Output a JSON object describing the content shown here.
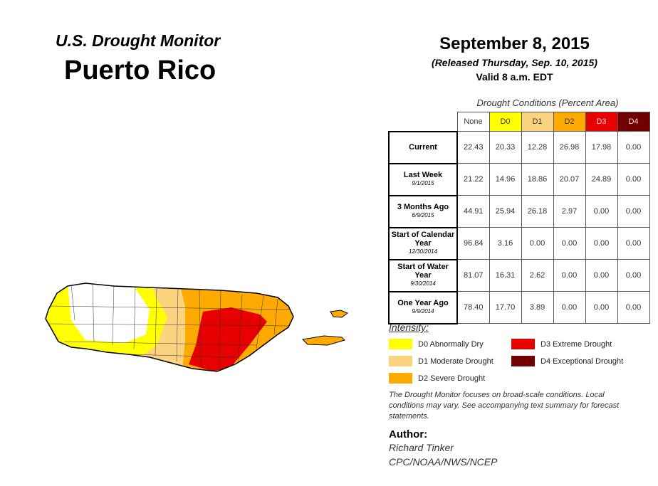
{
  "header": {
    "product": "U.S. Drought Monitor",
    "region": "Puerto Rico",
    "date": "September 8, 2015",
    "released": "(Released Thursday, Sep. 10, 2015)",
    "valid": "Valid 8 a.m. EDT"
  },
  "table": {
    "title": "Drought Conditions (Percent Area)",
    "columns": [
      {
        "label": "None",
        "color": "#ffffff"
      },
      {
        "label": "D0",
        "color": "#ffff00"
      },
      {
        "label": "D1",
        "color": "#fcd37f"
      },
      {
        "label": "D2",
        "color": "#ffaa00"
      },
      {
        "label": "D3",
        "color": "#e60000"
      },
      {
        "label": "D4",
        "color": "#730000"
      }
    ],
    "rows": [
      {
        "label": "Current",
        "sub": "",
        "values": [
          "22.43",
          "20.33",
          "12.28",
          "26.98",
          "17.98",
          "0.00"
        ]
      },
      {
        "label": "Last Week",
        "sub": "9/1/2015",
        "values": [
          "21.22",
          "14.96",
          "18.86",
          "20.07",
          "24.89",
          "0.00"
        ]
      },
      {
        "label": "3 Months Ago",
        "sub": "6/9/2015",
        "values": [
          "44.91",
          "25.94",
          "26.18",
          "2.97",
          "0.00",
          "0.00"
        ]
      },
      {
        "label": "Start of Calendar Year",
        "sub": "12/30/2014",
        "values": [
          "96.84",
          "3.16",
          "0.00",
          "0.00",
          "0.00",
          "0.00"
        ]
      },
      {
        "label": "Start of Water Year",
        "sub": "9/30/2014",
        "values": [
          "81.07",
          "16.31",
          "2.62",
          "0.00",
          "0.00",
          "0.00"
        ]
      },
      {
        "label": "One Year Ago",
        "sub": "9/9/2014",
        "values": [
          "78.40",
          "17.70",
          "3.89",
          "0.00",
          "0.00",
          "0.00"
        ]
      }
    ]
  },
  "legend": {
    "title": "Intensity:",
    "items": [
      {
        "label": "D0 Abnormally Dry",
        "color": "#ffff00"
      },
      {
        "label": "D1 Moderate Drought",
        "color": "#fcd37f"
      },
      {
        "label": "D2 Severe Drought",
        "color": "#ffaa00"
      },
      {
        "label": "D3 Extreme Drought",
        "color": "#e60000"
      },
      {
        "label": "D4 Exceptional Drought",
        "color": "#730000"
      }
    ]
  },
  "note": "The Drought Monitor focuses on broad-scale conditions. Local conditions may vary. See accompanying text summary for forecast statements.",
  "author": {
    "label": "Author:",
    "name": "Richard Tinker",
    "org": "CPC/NOAA/NWS/NCEP"
  }
}
